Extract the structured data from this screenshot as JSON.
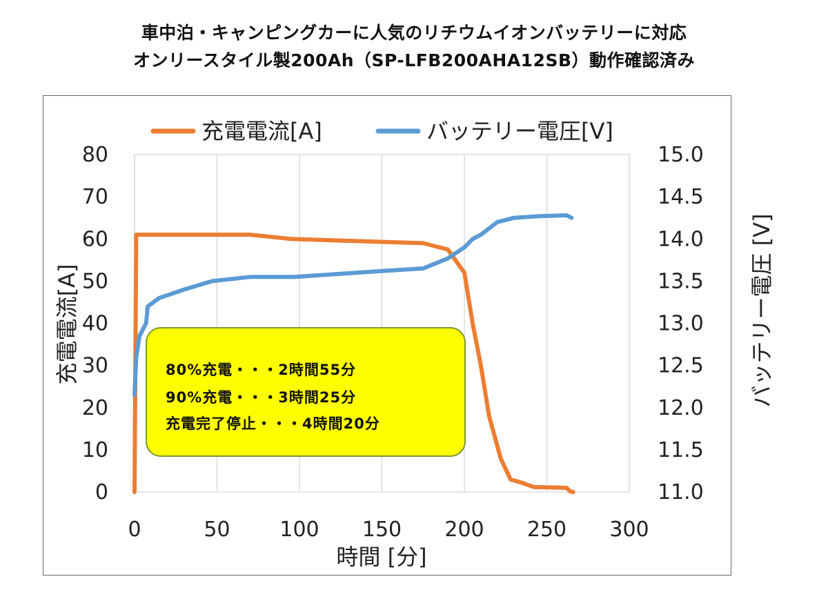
{
  "chart_data": {
    "type": "line",
    "title": "車中泊・キャンピングカーに人気のリチウムイオンバッテリーに対応",
    "subtitle": "オンリースタイル製200Ah（SP-LFB200AHA12SB）動作確認済み",
    "xlabel": "時間 [分]",
    "ylabel_left": "充電電流[A]",
    "ylabel_right": "バッテリー電圧 [V]",
    "xlim": [
      0,
      300
    ],
    "ylim_left": [
      0,
      80
    ],
    "ylim_right": [
      11.0,
      15.0
    ],
    "x_ticks": [
      "0",
      "50",
      "100",
      "150",
      "200",
      "250",
      "300"
    ],
    "y_left_ticks": [
      "0",
      "10",
      "20",
      "30",
      "40",
      "50",
      "60",
      "70",
      "80"
    ],
    "y_right_ticks": [
      "11.0",
      "11.5",
      "12.0",
      "12.5",
      "13.0",
      "13.5",
      "14.0",
      "14.5",
      "15.0"
    ],
    "grid": "vertical",
    "legend_position": "top",
    "series": [
      {
        "name": "充電電流[A]",
        "axis": "left",
        "color": "#ed7d31",
        "points": [
          [
            0,
            0
          ],
          [
            1,
            61
          ],
          [
            10,
            61
          ],
          [
            70,
            61
          ],
          [
            95,
            60
          ],
          [
            150,
            59.3
          ],
          [
            175,
            59
          ],
          [
            190,
            57.5
          ],
          [
            200,
            52
          ],
          [
            205,
            40
          ],
          [
            210,
            30
          ],
          [
            215,
            18
          ],
          [
            222,
            8
          ],
          [
            228,
            3
          ],
          [
            235,
            2.2
          ],
          [
            242,
            1.2
          ],
          [
            262,
            1
          ],
          [
            264,
            0.2
          ],
          [
            266,
            0
          ]
        ]
      },
      {
        "name": "バッテリー電圧[V]",
        "axis": "right",
        "color": "#5b9bd5",
        "points": [
          [
            0,
            12.15
          ],
          [
            1,
            12.6
          ],
          [
            3,
            12.85
          ],
          [
            7,
            13.0
          ],
          [
            8,
            13.2
          ],
          [
            15,
            13.3
          ],
          [
            30,
            13.4
          ],
          [
            47,
            13.5
          ],
          [
            70,
            13.55
          ],
          [
            97,
            13.55
          ],
          [
            150,
            13.62
          ],
          [
            175,
            13.65
          ],
          [
            190,
            13.77
          ],
          [
            200,
            13.9
          ],
          [
            205,
            14.0
          ],
          [
            210,
            14.05
          ],
          [
            220,
            14.2
          ],
          [
            230,
            14.25
          ],
          [
            245,
            14.27
          ],
          [
            262,
            14.28
          ],
          [
            265,
            14.25
          ]
        ]
      }
    ],
    "annotation": {
      "lines": [
        "80%充電・・・2時間55分",
        "90%充電・・・3時間25分",
        "充電完了停止・・・4時間20分"
      ],
      "background": "#ffff00"
    }
  }
}
